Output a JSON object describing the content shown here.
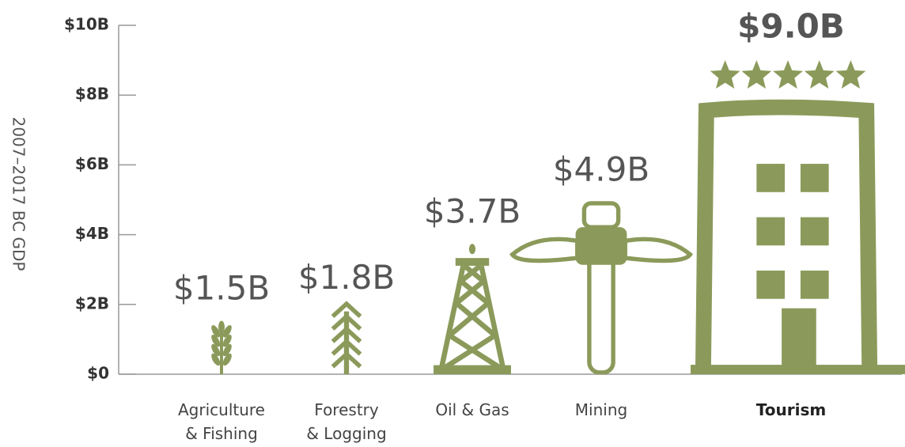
{
  "chart_data": {
    "type": "pictograph",
    "y_axis_label": "2007–2017 BC GDP",
    "categories": [
      "Agriculture\n& Fishing",
      "Forestry\n& Logging",
      "Oil & Gas",
      "Mining",
      "Tourism"
    ],
    "values": [
      1.5,
      1.8,
      3.7,
      4.9,
      9.0
    ],
    "value_labels": [
      "$1.5B",
      "$1.8B",
      "$3.7B",
      "$4.9B",
      "$9.0B"
    ],
    "color": "#8b9a5a",
    "ylim": [
      0,
      10
    ],
    "yticks": [
      {
        "value": 0,
        "label": "$0"
      },
      {
        "value": 2,
        "label": "$2B"
      },
      {
        "value": 4,
        "label": "$4B"
      },
      {
        "value": 6,
        "label": "$6B"
      },
      {
        "value": 8,
        "label": "$8B"
      },
      {
        "value": 10,
        "label": "$10B"
      }
    ]
  }
}
